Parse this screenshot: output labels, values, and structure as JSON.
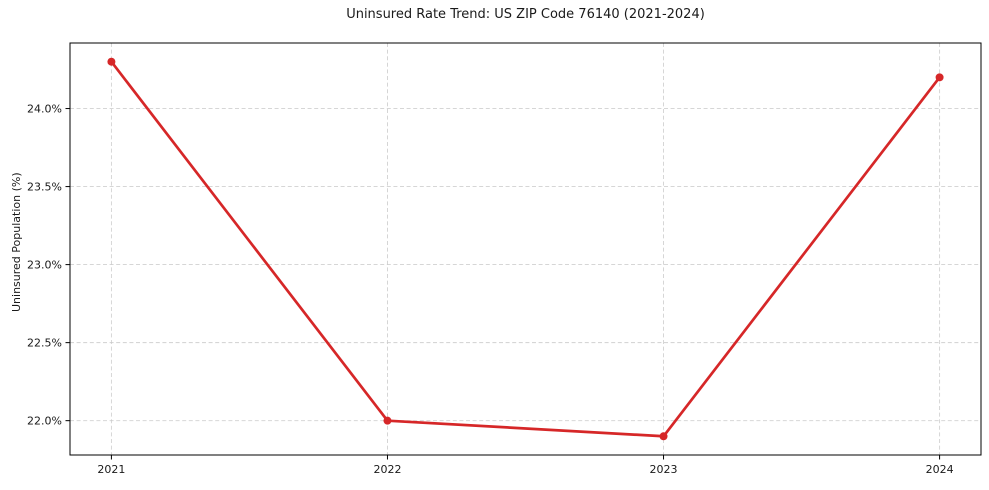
{
  "chart_data": {
    "type": "line",
    "title": "Uninsured Rate Trend: US ZIP Code 76140 (2021-2024)",
    "xlabel": "",
    "ylabel": "Uninsured Population (%)",
    "x": [
      2021,
      2022,
      2023,
      2024
    ],
    "values": [
      24.3,
      22.0,
      21.9,
      24.2
    ],
    "xtick_labels": [
      "2021",
      "2022",
      "2023",
      "2024"
    ],
    "ytick_values": [
      22.0,
      22.5,
      23.0,
      23.5,
      24.0
    ],
    "ytick_labels": [
      "22.0%",
      "22.5%",
      "23.0%",
      "23.5%",
      "24.0%"
    ],
    "xlim": [
      2020.85,
      2024.15
    ],
    "ylim": [
      21.78,
      24.42
    ],
    "grid": true,
    "grid_linestyle": "dashed",
    "legend_position": "none",
    "line_color": "#d62728",
    "marker": "circle",
    "marker_color": "#d62728",
    "grid_color": "#c9c9c9",
    "spine_color": "#000000",
    "text_color": "#1a1a1a",
    "background_color": "#ffffff"
  }
}
